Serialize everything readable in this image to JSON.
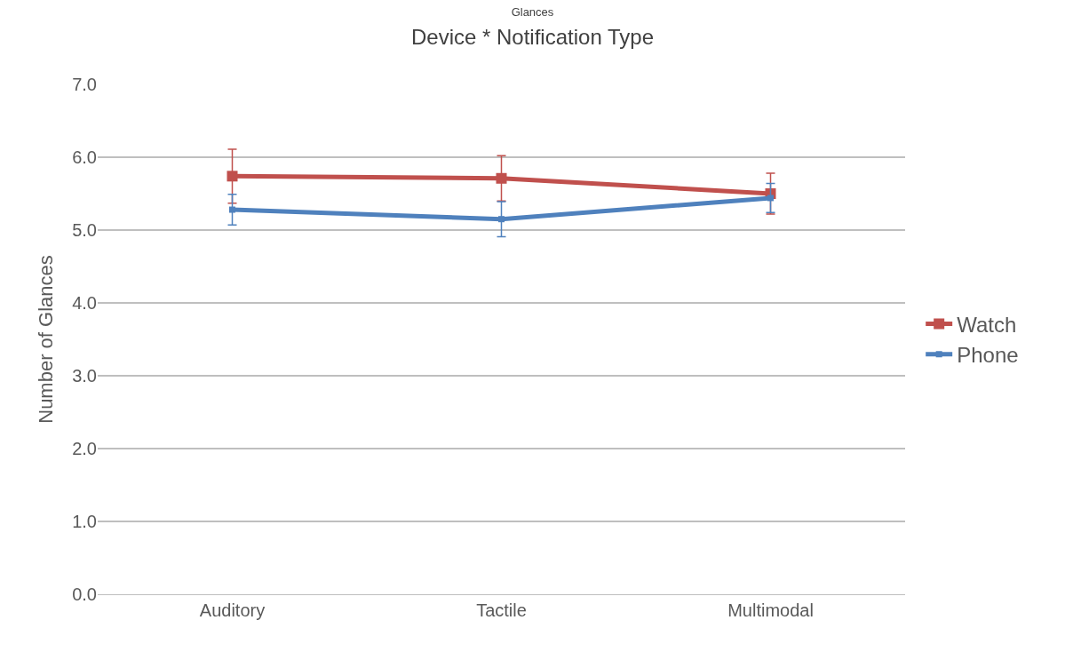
{
  "chart_data": {
    "type": "line",
    "title": "Glances",
    "subtitle": "Device * Notification Type",
    "ylabel": "Number of Glances",
    "categories": [
      "Auditory",
      "Tactile",
      "Multimodal"
    ],
    "series": [
      {
        "name": "Watch",
        "color": "#c0504d",
        "values": [
          5.74,
          5.71,
          5.5
        ],
        "errors": [
          0.37,
          0.31,
          0.28
        ]
      },
      {
        "name": "Phone",
        "color": "#4f81bd",
        "values": [
          5.28,
          5.15,
          5.44
        ],
        "errors": [
          0.21,
          0.24,
          0.2
        ]
      }
    ],
    "ylim": [
      0,
      7
    ],
    "yticks": [
      {
        "value": 0,
        "label": "0.0"
      },
      {
        "value": 1,
        "label": "1.0"
      },
      {
        "value": 2,
        "label": "2.0"
      },
      {
        "value": 3,
        "label": "3.0"
      },
      {
        "value": 4,
        "label": "4.0"
      },
      {
        "value": 5,
        "label": "5.0"
      },
      {
        "value": 6,
        "label": "6.0"
      },
      {
        "value": 7,
        "label": "7.0"
      }
    ],
    "grid": "y",
    "legend": "right",
    "marker": "square",
    "line_style": "solid"
  }
}
